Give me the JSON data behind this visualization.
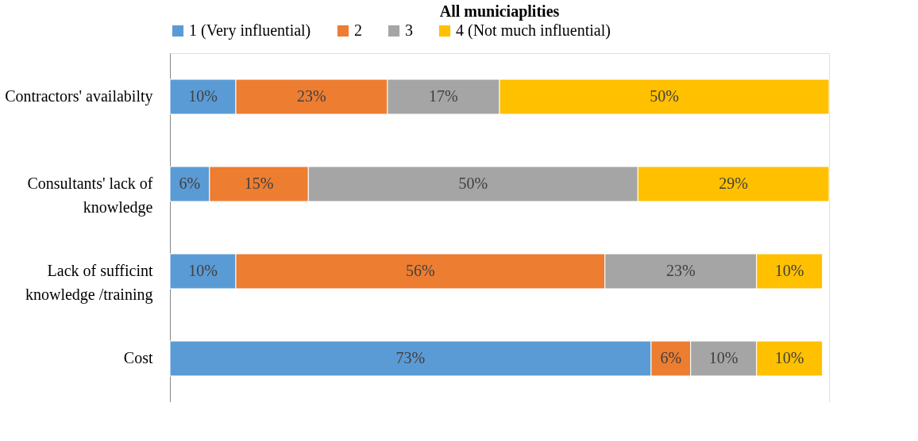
{
  "chart_data": {
    "type": "bar",
    "orientation": "horizontal",
    "stacked": true,
    "title": "All municiaplities",
    "categories": [
      "Contractors' availabilty",
      "Consultants' lack of\nknowledge",
      "Lack of sufficint\nknowledge /training",
      "Cost"
    ],
    "series": [
      {
        "name": "1 (Very influential)",
        "color": "#5b9bd5",
        "values": [
          10,
          6,
          10,
          73
        ],
        "value_labels": [
          "10%",
          "6%",
          "10%",
          "73%"
        ]
      },
      {
        "name": "2",
        "color": "#ed7d31",
        "values": [
          23,
          15,
          56,
          6
        ],
        "value_labels": [
          "23%",
          "15%",
          "56%",
          "6%"
        ]
      },
      {
        "name": "3",
        "color": "#a5a5a5",
        "values": [
          17,
          50,
          23,
          10
        ],
        "value_labels": [
          "17%",
          "50%",
          "23%",
          "10%"
        ]
      },
      {
        "name": "4 (Not much influential)",
        "color": "#ffc000",
        "values": [
          50,
          29,
          10,
          10
        ],
        "value_labels": [
          "50%",
          "29%",
          "10%",
          "10%"
        ]
      }
    ],
    "xlim": [
      0,
      100
    ],
    "legend": "top",
    "grid": false,
    "tick_labels": "y"
  }
}
